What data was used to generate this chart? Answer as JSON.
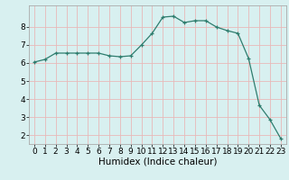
{
  "x": [
    0,
    1,
    2,
    3,
    4,
    5,
    6,
    7,
    8,
    9,
    10,
    11,
    12,
    13,
    14,
    15,
    16,
    17,
    18,
    19,
    20,
    21,
    22,
    23
  ],
  "y": [
    6.05,
    6.2,
    6.55,
    6.55,
    6.55,
    6.55,
    6.55,
    6.4,
    6.35,
    6.4,
    7.0,
    7.65,
    8.55,
    8.6,
    8.25,
    8.35,
    8.35,
    8.0,
    7.8,
    7.65,
    6.25,
    3.65,
    2.85,
    1.8
  ],
  "line_color": "#2e7d6e",
  "marker": "+",
  "marker_size": 3,
  "bg_color": "#d8f0f0",
  "grid_color": "#e8b8b8",
  "xlabel": "Humidex (Indice chaleur)",
  "ylim": [
    1.5,
    9.2
  ],
  "xlim": [
    -0.5,
    23.5
  ],
  "yticks": [
    2,
    3,
    4,
    5,
    6,
    7,
    8
  ],
  "xticks": [
    0,
    1,
    2,
    3,
    4,
    5,
    6,
    7,
    8,
    9,
    10,
    11,
    12,
    13,
    14,
    15,
    16,
    17,
    18,
    19,
    20,
    21,
    22,
    23
  ],
  "font_size": 6.5,
  "label_font_size": 7.5,
  "linewidth": 0.9,
  "spine_color": "#aaaaaa"
}
